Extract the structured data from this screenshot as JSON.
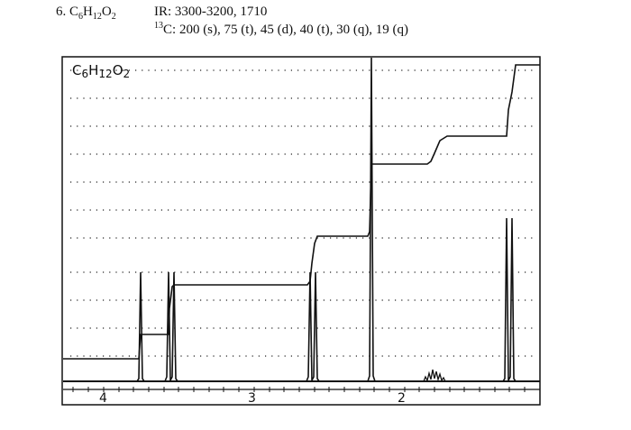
{
  "problem": {
    "number": "6.",
    "formula_parts": [
      "C",
      "6",
      "H",
      "12",
      "O",
      "2"
    ]
  },
  "ir": {
    "label": "IR:",
    "values": "3300-3200, 1710"
  },
  "c13": {
    "mass": "13",
    "element": "C:",
    "values": "200 (s), 75 (t), 45 (d), 40 (t), 30 (q), 19 (q)"
  },
  "spectrum": {
    "handwritten_label": "C6H12O2",
    "x_ticks": [
      "4",
      "3",
      "2"
    ]
  }
}
